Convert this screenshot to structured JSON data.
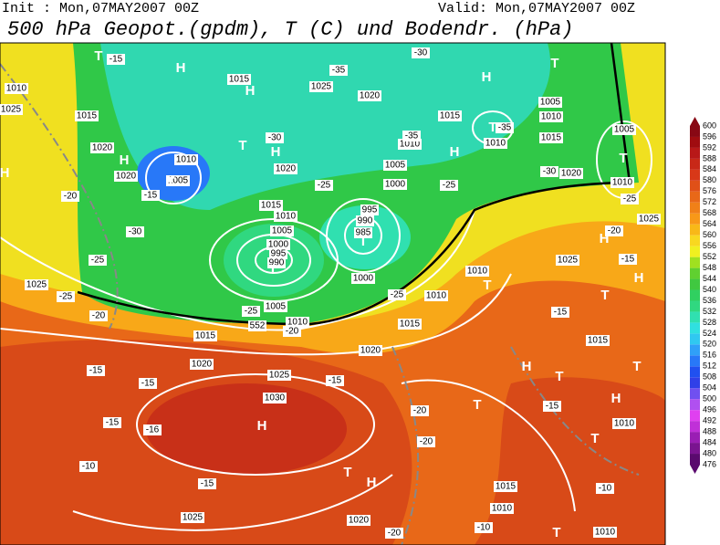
{
  "header": {
    "init": "Init : Mon,07MAY2007 00Z",
    "valid": "Valid: Mon,07MAY2007 00Z",
    "title": "500 hPa Geopot.(gpdm), T (C) und Bodendr. (hPa)"
  },
  "labels": {
    "isobars": [
      "1010",
      "1015",
      "1020",
      "1025",
      "1015",
      "1025",
      "1020",
      "1015",
      "1005",
      "1010",
      "1015",
      "1010",
      "1005",
      "1010",
      "1020",
      "1025",
      "1025",
      "1015",
      "1010",
      "1020",
      "1010",
      "1020",
      "1005",
      "1015",
      "1010",
      "1005",
      "1000",
      "995",
      "990",
      "995",
      "990",
      "985",
      "1000",
      "1005",
      "1010",
      "1015",
      "1020",
      "1025",
      "1030",
      "1025",
      "1020",
      "1015",
      "1010",
      "1010",
      "1015",
      "1020",
      "1010",
      "1010",
      "1000",
      "1005",
      "1010",
      "1025",
      "552"
    ],
    "temperatures": [
      "-15",
      "-35",
      "-30",
      "-30",
      "-35",
      "-15",
      "-25",
      "-25",
      "-20",
      "-30",
      "-25",
      "-25",
      "-20",
      "-25",
      "-25",
      "-20",
      "-30",
      "-25",
      "-20",
      "-15",
      "-15",
      "-15",
      "-15",
      "-15",
      "-16",
      "-15",
      "-10",
      "-15",
      "-20",
      "-20",
      "-15",
      "-10",
      "-20",
      "-10",
      "-35"
    ],
    "centers": [
      "T",
      "H",
      "H",
      "H",
      "T",
      "T",
      "H",
      "H",
      "T",
      "T",
      "H",
      "T",
      "T",
      "T",
      "H",
      "H",
      "T",
      "T",
      "H",
      "T",
      "T",
      "H",
      "T",
      "H",
      "T",
      "H",
      "T",
      "T",
      "H"
    ]
  },
  "colorbar": {
    "ticks": [
      476,
      480,
      484,
      488,
      492,
      496,
      500,
      504,
      508,
      512,
      516,
      520,
      524,
      528,
      532,
      536,
      540,
      544,
      548,
      552,
      556,
      560,
      564,
      568,
      572,
      576,
      580,
      584,
      588,
      592,
      596,
      600
    ],
    "colors": [
      "#5a0a6e",
      "#7a1490",
      "#9a1eb4",
      "#c030d8",
      "#e040f0",
      "#b050f0",
      "#7050f0",
      "#3040e8",
      "#2050f0",
      "#2878f8",
      "#30a0f8",
      "#30c8f0",
      "#30e0e0",
      "#30e0b0",
      "#30d880",
      "#30d060",
      "#40c840",
      "#60d030",
      "#a0e020",
      "#f0f020",
      "#f8d820",
      "#f8b818",
      "#f89818",
      "#f08018",
      "#e86818",
      "#e05018",
      "#d83818",
      "#c82818",
      "#b81818",
      "#a00c10",
      "#880814"
    ]
  }
}
